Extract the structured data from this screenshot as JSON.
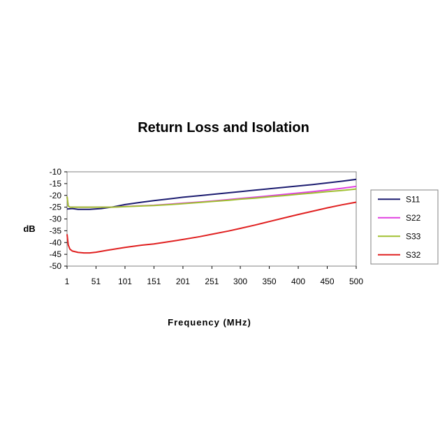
{
  "chart_data": {
    "type": "line",
    "title": "Return Loss and Isolation",
    "xlabel": "Frequency (MHz)",
    "ylabel": "dB",
    "xlim": [
      1,
      500
    ],
    "ylim": [
      -50,
      -10
    ],
    "x_ticks": [
      1,
      51,
      101,
      151,
      201,
      251,
      300,
      350,
      400,
      450,
      500
    ],
    "y_ticks": [
      -10,
      -15,
      -20,
      -25,
      -30,
      -35,
      -40,
      -45,
      -50
    ],
    "y_tick_labels": [
      "-10",
      "-15",
      "-20",
      "-25",
      "-30",
      "-35",
      "-40",
      "-45",
      "-50"
    ],
    "grid": false,
    "legend_position": "right",
    "series": [
      {
        "name": "S11",
        "color": "#1c1c70",
        "points": [
          [
            1,
            -25.8
          ],
          [
            10,
            -25.6
          ],
          [
            20,
            -25.9
          ],
          [
            40,
            -25.9
          ],
          [
            60,
            -25.6
          ],
          [
            80,
            -24.9
          ],
          [
            101,
            -23.9
          ],
          [
            130,
            -22.9
          ],
          [
            151,
            -22.2
          ],
          [
            180,
            -21.4
          ],
          [
            201,
            -20.8
          ],
          [
            230,
            -20.1
          ],
          [
            251,
            -19.6
          ],
          [
            280,
            -18.9
          ],
          [
            300,
            -18.4
          ],
          [
            325,
            -17.8
          ],
          [
            350,
            -17.2
          ],
          [
            375,
            -16.6
          ],
          [
            400,
            -16.0
          ],
          [
            425,
            -15.4
          ],
          [
            450,
            -14.7
          ],
          [
            475,
            -14.0
          ],
          [
            500,
            -13.2
          ]
        ]
      },
      {
        "name": "S22",
        "color": "#e040e0",
        "points": [
          [
            1,
            -20.5
          ],
          [
            3,
            -24.5
          ],
          [
            6,
            -25.0
          ],
          [
            20,
            -25.0
          ],
          [
            51,
            -25.0
          ],
          [
            80,
            -25.0
          ],
          [
            101,
            -24.7
          ],
          [
            130,
            -24.4
          ],
          [
            151,
            -24.2
          ],
          [
            180,
            -23.7
          ],
          [
            201,
            -23.3
          ],
          [
            230,
            -22.8
          ],
          [
            251,
            -22.4
          ],
          [
            280,
            -21.8
          ],
          [
            300,
            -21.3
          ],
          [
            325,
            -20.8
          ],
          [
            350,
            -20.2
          ],
          [
            375,
            -19.6
          ],
          [
            400,
            -19.0
          ],
          [
            425,
            -18.4
          ],
          [
            450,
            -17.7
          ],
          [
            475,
            -17.0
          ],
          [
            500,
            -16.2
          ]
        ]
      },
      {
        "name": "S33",
        "color": "#a0c030",
        "points": [
          [
            1,
            -20.5
          ],
          [
            3,
            -24.5
          ],
          [
            6,
            -25.0
          ],
          [
            20,
            -25.0
          ],
          [
            51,
            -25.0
          ],
          [
            80,
            -25.0
          ],
          [
            101,
            -24.8
          ],
          [
            130,
            -24.5
          ],
          [
            151,
            -24.3
          ],
          [
            180,
            -23.9
          ],
          [
            201,
            -23.5
          ],
          [
            230,
            -23.0
          ],
          [
            251,
            -22.6
          ],
          [
            280,
            -22.1
          ],
          [
            300,
            -21.6
          ],
          [
            325,
            -21.2
          ],
          [
            350,
            -20.6
          ],
          [
            375,
            -20.1
          ],
          [
            400,
            -19.5
          ],
          [
            425,
            -19.0
          ],
          [
            450,
            -18.4
          ],
          [
            475,
            -17.9
          ],
          [
            500,
            -17.3
          ]
        ]
      },
      {
        "name": "S32",
        "color": "#e02020",
        "points": [
          [
            1,
            -36.5
          ],
          [
            3,
            -41.0
          ],
          [
            6,
            -42.8
          ],
          [
            10,
            -43.6
          ],
          [
            20,
            -44.2
          ],
          [
            30,
            -44.4
          ],
          [
            40,
            -44.4
          ],
          [
            51,
            -44.1
          ],
          [
            70,
            -43.3
          ],
          [
            101,
            -42.1
          ],
          [
            130,
            -41.1
          ],
          [
            151,
            -40.6
          ],
          [
            180,
            -39.5
          ],
          [
            201,
            -38.7
          ],
          [
            230,
            -37.5
          ],
          [
            251,
            -36.5
          ],
          [
            280,
            -35.1
          ],
          [
            300,
            -34.0
          ],
          [
            325,
            -32.6
          ],
          [
            350,
            -31.1
          ],
          [
            375,
            -29.6
          ],
          [
            400,
            -28.1
          ],
          [
            425,
            -26.7
          ],
          [
            450,
            -25.3
          ],
          [
            475,
            -24.0
          ],
          [
            500,
            -22.9
          ]
        ]
      }
    ]
  }
}
